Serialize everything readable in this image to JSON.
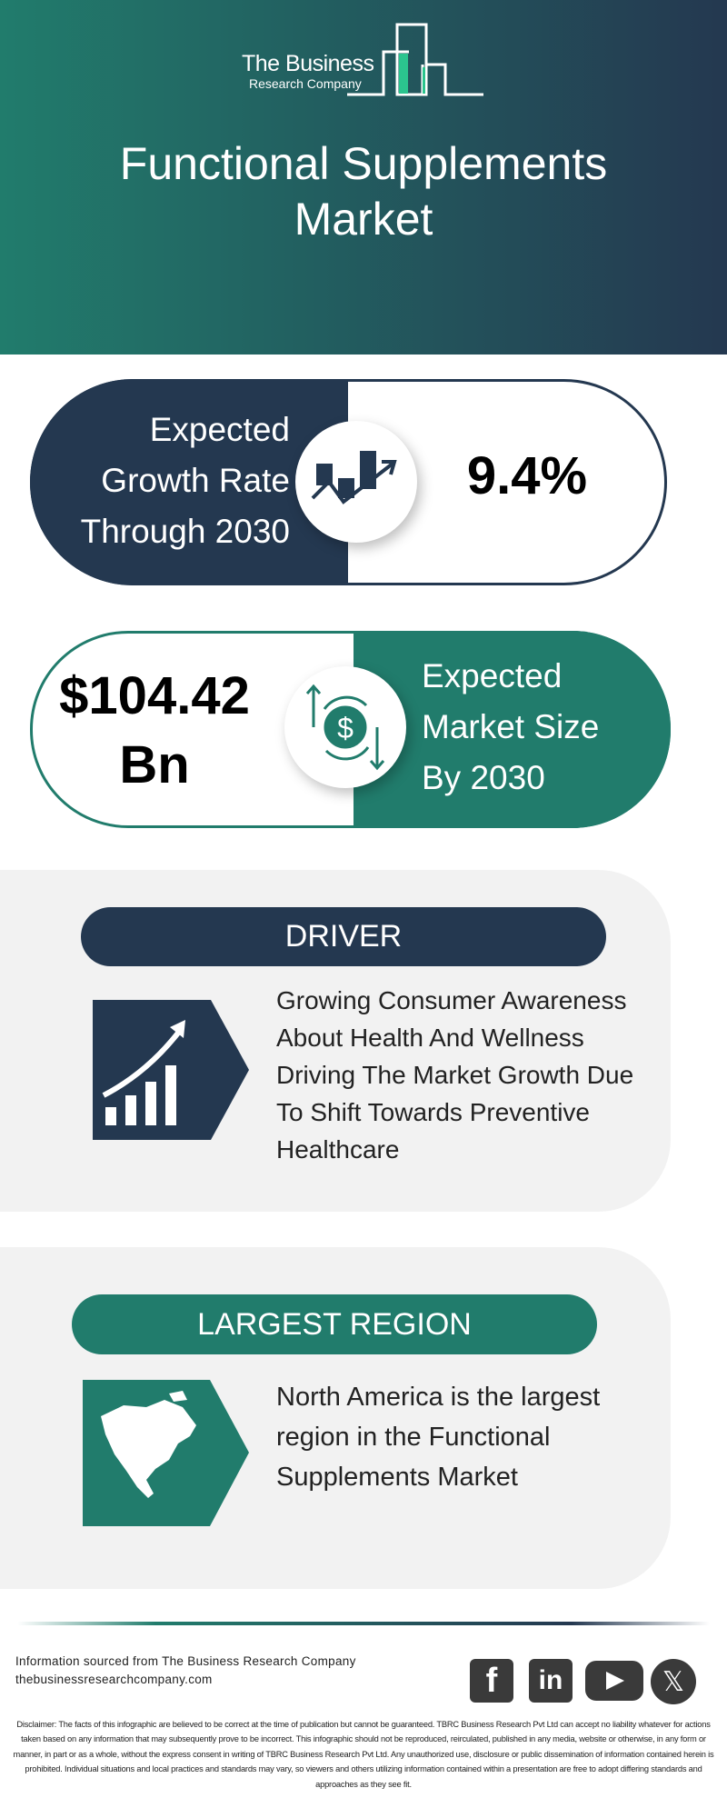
{
  "header": {
    "logo_line1": "The Business",
    "logo_line2": "Research Company",
    "title_line1": "Functional Supplements",
    "title_line2": "Market"
  },
  "growth": {
    "label": [
      "Expected",
      "Growth Rate",
      "Through 2030"
    ],
    "value": "9.4%",
    "icon": "growth-chart-icon"
  },
  "size": {
    "value_line1": "$104.42",
    "value_line2": "Bn",
    "label": [
      "Expected",
      "Market Size",
      "By 2030"
    ],
    "icon": "dollar-exchange-icon"
  },
  "driver": {
    "heading": "DRIVER",
    "text": [
      "Growing Consumer Awareness",
      "About Health And Wellness",
      "Driving The Market Growth Due",
      "To Shift Towards Preventive",
      "Healthcare"
    ],
    "icon": "rising-bars-icon"
  },
  "region": {
    "heading": "LARGEST REGION",
    "text": [
      "North America is the largest",
      "region in the Functional",
      "Supplements Market"
    ],
    "icon": "north-america-map-icon"
  },
  "footer": {
    "source": "Information sourced from The Business Research Company",
    "website": "thebusinessresearchcompany.com",
    "social": [
      "facebook",
      "linkedin",
      "youtube",
      "x"
    ],
    "disclaimer": "Disclaimer: The facts of this infographic are believed to be correct at the time of publication but cannot be guaranteed. TBRC Business Research Pvt Ltd can accept no liability whatever for actions taken based on any information that may subsequently prove to be incorrect. This infographic should not be reproduced, reirculated, published in any media, website or otherwise, in any form or manner, in part or as a whole, without the express consent in writing of TBRC Business Research Pvt Ltd. Any unauthorized use, disclosure or public dissemination of information contained herein is prohibited. Individual situations and local practices and standards may vary, so viewers and others utilizing information contained within a presentation are free to adopt differing standards and approaches as they see fit."
  },
  "colors": {
    "navy": "#243850",
    "teal": "#217c6c",
    "panel": "#f2f2f2"
  }
}
